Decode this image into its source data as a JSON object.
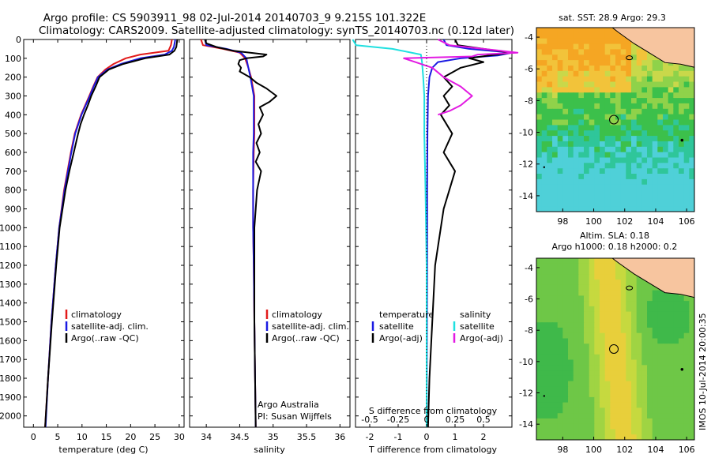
{
  "header": {
    "line1": "Argo profile: CS 5903911_98 02-Jul-2014 20140703_9 9.215S 101.322E",
    "line2": "Climatology: CARS2009. Satellite-adjusted climatology: synTS_20140703.nc (0.12d later)"
  },
  "colors": {
    "climatology": "#e21a1a",
    "satellite": "#1a1ae2",
    "argo": "#000000",
    "sal_satellite": "#1fe0e0",
    "sal_argo": "#e21ae2"
  },
  "chart_data": [
    {
      "type": "line",
      "name": "temperature",
      "xlabel": "temperature (deg C)",
      "xlim": [
        -2,
        31
      ],
      "ylim": [
        0,
        2060
      ],
      "xticks": [
        "0",
        "5",
        "10",
        "15",
        "20",
        "25",
        "30"
      ],
      "xtick_values": [
        0,
        5,
        10,
        15,
        20,
        25,
        30
      ],
      "yticks": [
        "0",
        "100",
        "200",
        "300",
        "400",
        "500",
        "600",
        "700",
        "800",
        "900",
        "1000",
        "1100",
        "1200",
        "1300",
        "1400",
        "1500",
        "1600",
        "1700",
        "1800",
        "1900",
        "2000"
      ],
      "ytick_values": [
        0,
        100,
        200,
        300,
        400,
        500,
        600,
        700,
        800,
        900,
        1000,
        1100,
        1200,
        1300,
        1400,
        1500,
        1600,
        1700,
        1800,
        1900,
        2000
      ],
      "legend": [
        "climatology",
        "satellite-adj. clim.",
        "Argo(..raw -QC)"
      ],
      "series": [
        {
          "name": "climatology",
          "color_key": "climatology",
          "depth": [
            0,
            30,
            60,
            80,
            100,
            130,
            160,
            200,
            250,
            300,
            400,
            500,
            600,
            800,
            1000,
            1200,
            1500,
            1800,
            2060
          ],
          "values": [
            28.5,
            28.3,
            27.8,
            22,
            19,
            16.5,
            14.8,
            13.2,
            12.3,
            11.5,
            9.8,
            8.5,
            7.7,
            6.3,
            5.3,
            4.6,
            3.7,
            3.0,
            2.4
          ]
        },
        {
          "name": "satellite-adj. clim.",
          "color_key": "satellite",
          "depth": [
            0,
            40,
            60,
            80,
            100,
            130,
            160,
            200,
            250,
            300,
            400,
            500,
            600,
            800,
            1000,
            1200,
            1500,
            1800,
            2060
          ],
          "values": [
            29.2,
            28.9,
            28.5,
            27,
            22,
            18,
            15.2,
            13.3,
            12.4,
            11.6,
            9.9,
            8.6,
            7.8,
            6.4,
            5.3,
            4.6,
            3.7,
            3.0,
            2.5
          ]
        },
        {
          "name": "Argo(..raw -QC)",
          "color_key": "argo",
          "depth": [
            0,
            40,
            60,
            80,
            100,
            130,
            160,
            200,
            250,
            300,
            350,
            400,
            450,
            500,
            600,
            700,
            800,
            900,
            1000,
            1200,
            1500,
            1800,
            2060
          ],
          "values": [
            29.6,
            29.4,
            29.0,
            28.0,
            23,
            18.5,
            15.5,
            13.6,
            12.8,
            11.9,
            11.2,
            10.4,
            9.7,
            9.2,
            8.3,
            7.4,
            6.6,
            6.0,
            5.4,
            4.7,
            3.8,
            3.0,
            2.4
          ]
        }
      ]
    },
    {
      "type": "line",
      "name": "salinity",
      "xlabel": "salinity",
      "xlim": [
        33.75,
        36.15
      ],
      "ylim": [
        0,
        2060
      ],
      "xticks": [
        "34",
        "34.5",
        "35",
        "35.5",
        "36"
      ],
      "xtick_values": [
        34,
        34.5,
        35,
        35.5,
        36
      ],
      "legend": [
        "climatology",
        "satellite-adj. clim.",
        "Argo(..raw -QC)"
      ],
      "annotation": [
        "Argo Australia",
        "PI: Susan Wijffels"
      ],
      "series": [
        {
          "name": "climatology",
          "color_key": "climatology",
          "depth": [
            0,
            30,
            50,
            70,
            100,
            150,
            200,
            300,
            400,
            500,
            600,
            800,
            1000,
            1200,
            1500,
            1800,
            2060
          ],
          "values": [
            33.92,
            33.95,
            34.25,
            34.5,
            34.58,
            34.63,
            34.67,
            34.72,
            34.72,
            34.72,
            34.71,
            34.7,
            34.7,
            34.71,
            34.72,
            34.73,
            34.74
          ]
        },
        {
          "name": "satellite-adj. clim.",
          "color_key": "satellite",
          "depth": [
            0,
            30,
            50,
            70,
            100,
            150,
            200,
            300,
            400,
            500,
            600,
            800,
            1000,
            1200,
            1500,
            1800,
            2060
          ],
          "values": [
            33.98,
            34.0,
            34.3,
            34.52,
            34.6,
            34.63,
            34.66,
            34.71,
            34.71,
            34.71,
            34.7,
            34.7,
            34.7,
            34.71,
            34.72,
            34.73,
            34.74
          ]
        },
        {
          "name": "Argo(..raw -QC)",
          "color_key": "argo",
          "depth": [
            0,
            20,
            40,
            60,
            80,
            90,
            100,
            110,
            130,
            150,
            170,
            200,
            230,
            260,
            300,
            330,
            360,
            400,
            450,
            500,
            550,
            600,
            650,
            700,
            800,
            900,
            1000,
            1200,
            1500,
            1800,
            2060
          ],
          "values": [
            33.98,
            34.0,
            34.15,
            34.4,
            34.9,
            34.85,
            34.6,
            34.5,
            34.48,
            34.52,
            34.5,
            34.65,
            34.75,
            34.9,
            35.05,
            34.95,
            34.8,
            34.85,
            34.78,
            34.82,
            34.75,
            34.8,
            34.74,
            34.82,
            34.76,
            34.74,
            34.72,
            34.72,
            34.72,
            34.73,
            34.74
          ]
        }
      ]
    },
    {
      "type": "line",
      "name": "difference",
      "xlabel": "T difference from climatology",
      "x2label": "S difference from climatology",
      "xlim": [
        -2.5,
        3
      ],
      "ylim": [
        0,
        2060
      ],
      "xticks": [
        "-2",
        "-1",
        "0",
        "1",
        "2"
      ],
      "xtick_values": [
        -2,
        -1,
        0,
        1,
        2
      ],
      "x2ticks": [
        "-0.5",
        "-0.25",
        "0",
        "0.25",
        "0.5"
      ],
      "x2tick_values": [
        -0.5,
        -0.25,
        0,
        0.25,
        0.5
      ],
      "legend_left": [
        "temperature",
        "satellite",
        "Argo(-adj)"
      ],
      "legend_right": [
        "salinity",
        "satellite",
        "Argo(-adj)"
      ],
      "series": [
        {
          "name": "T satellite",
          "color_key": "satellite",
          "depth": [
            0,
            30,
            50,
            70,
            85,
            100,
            120,
            150,
            200,
            300,
            500,
            800,
            1200,
            1600,
            2060
          ],
          "values": [
            0.6,
            0.7,
            1.5,
            3.0,
            2.5,
            1.2,
            0.4,
            0.2,
            0.1,
            0.05,
            0.03,
            0.02,
            0.02,
            0.01,
            0.0
          ]
        },
        {
          "name": "T Argo(-adj)",
          "color_key": "argo",
          "depth": [
            0,
            30,
            50,
            70,
            85,
            100,
            120,
            150,
            200,
            250,
            300,
            350,
            400,
            500,
            600,
            700,
            800,
            900,
            1000,
            1200,
            1500,
            1800,
            2060
          ],
          "values": [
            1.0,
            1.1,
            2.0,
            3.0,
            2.2,
            1.5,
            2.0,
            1.2,
            0.6,
            0.9,
            0.6,
            0.8,
            0.5,
            0.9,
            0.6,
            1.0,
            0.8,
            0.6,
            0.5,
            0.3,
            0.2,
            0.1,
            0.05
          ]
        },
        {
          "name": "S satellite",
          "color_key": "sal_satellite",
          "depth": [
            0,
            30,
            50,
            80,
            120,
            200,
            300,
            500,
            800,
            1200,
            1600,
            2060
          ],
          "values": [
            -0.65,
            -0.62,
            -0.3,
            -0.05,
            -0.04,
            -0.03,
            -0.02,
            -0.02,
            -0.01,
            0.0,
            0.0,
            0.0
          ]
        },
        {
          "name": "S Argo(-adj)",
          "color_key": "sal_argo",
          "depth": [
            0,
            30,
            50,
            70,
            80,
            90,
            100,
            120,
            150,
            200,
            250,
            300,
            350,
            380,
            400
          ],
          "values": [
            0.1,
            0.2,
            0.5,
            0.8,
            0.45,
            0.4,
            -0.2,
            -0.1,
            0.05,
            0.15,
            0.3,
            0.4,
            0.3,
            0.2,
            0.1
          ]
        }
      ]
    },
    {
      "type": "heatmap",
      "name": "sst_map",
      "title": "sat. SST: 28.9 Argo: 29.3",
      "xticks": [
        "98",
        "100",
        "102",
        "104",
        "106"
      ],
      "xtick_values": [
        98,
        100,
        102,
        104,
        106
      ],
      "yticks": [
        "-4",
        "-6",
        "-8",
        "-10",
        "-12",
        "-14"
      ],
      "ytick_values": [
        -4,
        -6,
        -8,
        -10,
        -12,
        -14
      ],
      "xlim": [
        96.3,
        106.5
      ],
      "ylim": [
        -15,
        -3.4
      ],
      "marker": [
        101.3,
        -9.2
      ]
    },
    {
      "type": "heatmap",
      "name": "sla_map",
      "title_line1": "Altim. SLA: 0.18",
      "title_line2": "Argo h1000: 0.18 h2000: 0.2",
      "xticks": [
        "98",
        "100",
        "102",
        "104",
        "106"
      ],
      "xtick_values": [
        98,
        100,
        102,
        104,
        106
      ],
      "yticks": [
        "-4",
        "-6",
        "-8",
        "-10",
        "-12",
        "-14"
      ],
      "ytick_values": [
        -4,
        -6,
        -8,
        -10,
        -12,
        -14
      ],
      "xlim": [
        96.3,
        106.5
      ],
      "ylim": [
        -15,
        -3.4
      ],
      "marker": [
        101.3,
        -9.2
      ]
    }
  ],
  "footer": {
    "side_stamp": "IMOS 10-Jul-2014 20:00:35"
  }
}
